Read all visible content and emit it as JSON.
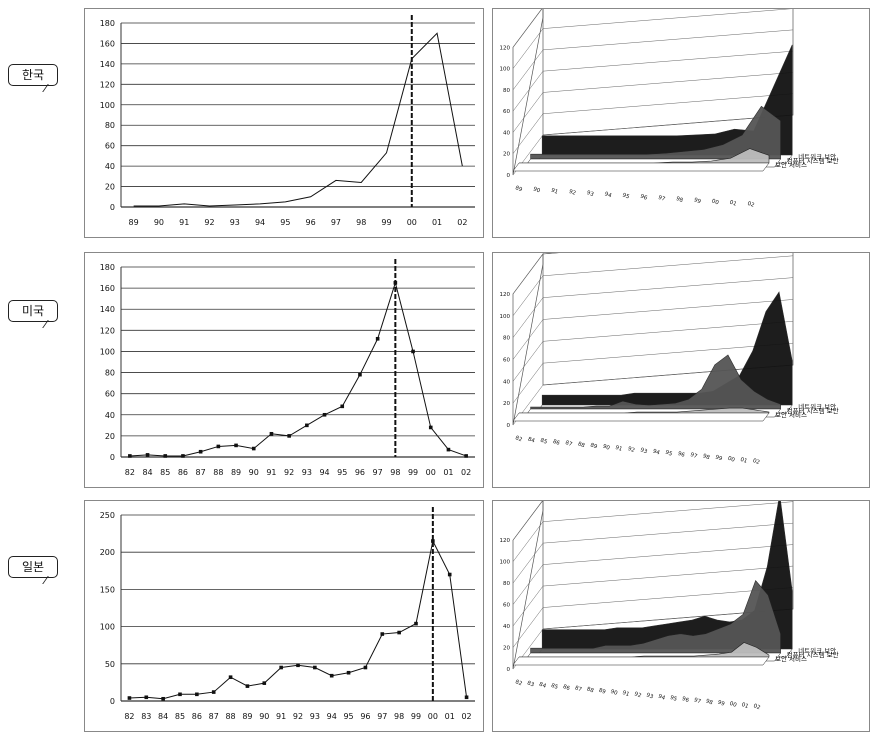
{
  "countries": [
    "한국",
    "미국",
    "일본"
  ],
  "chart_data": [
    {
      "type": "line",
      "country": "한국",
      "categories": [
        "89",
        "90",
        "91",
        "92",
        "93",
        "94",
        "95",
        "96",
        "97",
        "98",
        "99",
        "00",
        "01",
        "02"
      ],
      "values": [
        1,
        1,
        3,
        1,
        2,
        3,
        5,
        10,
        26,
        24,
        53,
        145,
        170,
        40
      ],
      "ylim": [
        0,
        180
      ],
      "yticks": [
        0,
        20,
        40,
        60,
        80,
        100,
        120,
        140,
        160,
        180
      ],
      "markers": false,
      "highlight": "00",
      "grid": true
    },
    {
      "type": "area",
      "country": "한국",
      "three_d": true,
      "series": [
        {
          "name": "네트워크 보안",
          "values": [
            20,
            20,
            20,
            20,
            20,
            20,
            20,
            20,
            21,
            22,
            27,
            25,
            70,
            115
          ]
        },
        {
          "name": "컴퓨터 시스템 보안",
          "values": [
            5,
            5,
            5,
            5,
            5,
            5,
            5,
            6,
            8,
            10,
            15,
            25,
            55,
            40
          ]
        },
        {
          "name": "보안 서비스",
          "values": [
            0,
            0,
            0,
            0,
            0,
            0,
            0,
            0,
            1,
            1,
            2,
            5,
            15,
            8
          ]
        }
      ],
      "ylim": [
        0,
        120
      ],
      "yticks": [
        0,
        20,
        40,
        60,
        80,
        100,
        120
      ],
      "xticks": [
        "89",
        "90",
        "91",
        "92",
        "93",
        "94",
        "95",
        "96",
        "97",
        "98",
        "99",
        "00",
        "01",
        "02"
      ]
    },
    {
      "type": "line",
      "country": "미국",
      "categories": [
        "82",
        "84",
        "85",
        "86",
        "87",
        "88",
        "89",
        "90",
        "91",
        "92",
        "93",
        "94",
        "95",
        "96",
        "97",
        "98",
        "99",
        "00",
        "01",
        "02"
      ],
      "values": [
        1,
        2,
        1,
        1,
        5,
        10,
        11,
        8,
        22,
        20,
        30,
        40,
        48,
        78,
        112,
        165,
        100,
        28,
        7,
        1
      ],
      "ylim": [
        0,
        180
      ],
      "yticks": [
        0,
        20,
        40,
        60,
        80,
        100,
        120,
        140,
        160,
        180
      ],
      "markers": true,
      "highlight": "98",
      "grid": true
    },
    {
      "type": "area",
      "country": "미국",
      "three_d": true,
      "series": [
        {
          "name": "네트워크 보안",
          "values": [
            10,
            10,
            10,
            10,
            10,
            10,
            10,
            12,
            12,
            12,
            12,
            12,
            12,
            14,
            22,
            30,
            55,
            95,
            115,
            45
          ]
        },
        {
          "name": "컴퓨터 시스템 보안",
          "values": [
            2,
            2,
            2,
            2,
            2,
            3,
            3,
            8,
            5,
            4,
            5,
            6,
            10,
            20,
            45,
            55,
            30,
            18,
            10,
            5
          ]
        },
        {
          "name": "보안 서비스",
          "values": [
            0,
            0,
            0,
            0,
            0,
            0,
            0,
            0,
            0,
            1,
            1,
            1,
            1,
            2,
            3,
            4,
            5,
            5,
            3,
            1
          ]
        }
      ],
      "ylim": [
        0,
        120
      ],
      "yticks": [
        0,
        20,
        40,
        60,
        80,
        100,
        120
      ],
      "xticks": [
        "82",
        "84",
        "85",
        "86",
        "87",
        "88",
        "89",
        "90",
        "91",
        "92",
        "93",
        "94",
        "95",
        "96",
        "97",
        "98",
        "99",
        "00",
        "01",
        "02"
      ]
    },
    {
      "type": "line",
      "country": "일본",
      "categories": [
        "82",
        "83",
        "84",
        "85",
        "86",
        "87",
        "88",
        "89",
        "90",
        "91",
        "92",
        "93",
        "94",
        "95",
        "96",
        "97",
        "98",
        "99",
        "00",
        "01",
        "02"
      ],
      "values": [
        4,
        5,
        3,
        9,
        9,
        12,
        32,
        20,
        24,
        45,
        48,
        45,
        34,
        38,
        45,
        90,
        92,
        104,
        215,
        170,
        5
      ],
      "ylim": [
        0,
        250
      ],
      "yticks": [
        0,
        50,
        100,
        150,
        200,
        250
      ],
      "markers": true,
      "highlight": "00",
      "grid": true
    },
    {
      "type": "area",
      "country": "일본",
      "three_d": true,
      "series": [
        {
          "name": "네트워크 보안",
          "values": [
            20,
            20,
            20,
            20,
            20,
            20,
            22,
            22,
            22,
            24,
            26,
            28,
            30,
            34,
            30,
            28,
            30,
            40,
            85,
            160,
            60
          ]
        },
        {
          "name": "컴퓨터 시스템 보안",
          "values": [
            5,
            5,
            5,
            5,
            5,
            5,
            8,
            8,
            8,
            10,
            14,
            18,
            20,
            18,
            20,
            25,
            30,
            40,
            75,
            60,
            20
          ]
        },
        {
          "name": "보안 서비스",
          "values": [
            0,
            0,
            0,
            0,
            0,
            0,
            0,
            0,
            0,
            0,
            1,
            1,
            1,
            1,
            1,
            2,
            3,
            5,
            15,
            10,
            2
          ]
        }
      ],
      "ylim": [
        0,
        120
      ],
      "yticks": [
        0,
        20,
        40,
        60,
        80,
        100,
        120
      ],
      "xticks": [
        "82",
        "83",
        "84",
        "85",
        "86",
        "87",
        "88",
        "89",
        "90",
        "91",
        "92",
        "93",
        "94",
        "95",
        "96",
        "97",
        "98",
        "99",
        "00",
        "01",
        "02"
      ]
    }
  ]
}
